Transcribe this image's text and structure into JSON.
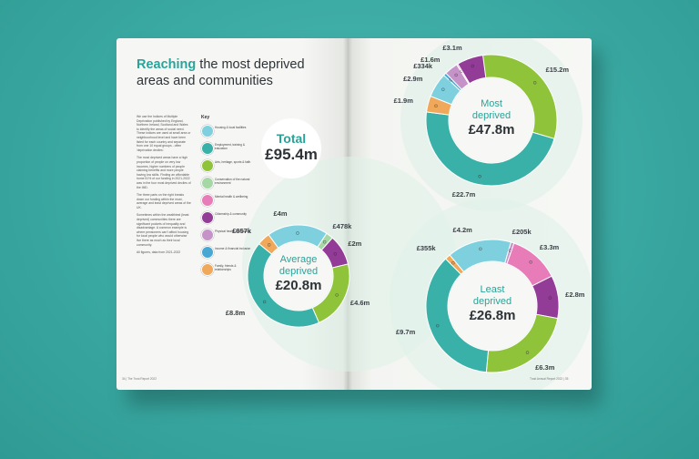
{
  "heading": {
    "highlight": "Reaching",
    "rest_line1": "the most deprived",
    "line2": "areas and communities"
  },
  "body_paragraphs": [
    "We use the Indices of Multiple Deprivation published by England, Northern Ireland, Scotland and Wales to identify the areas of social need. These indices are used at small area or neighbourhood level and have been listed for each country and separate from one 10 equal groups - often 'deprivation deciles'.",
    "The most deprived areas have a high proportion of people on very low incomes, higher numbers of people claiming benefits and more people having low skills. Finding an affordable home 51% of our funding in 2021-2022 was in the four most deprived deciles of the IMD.",
    "The three parts on the right breaks down our funding within the most, average and least deprived areas of the UK.",
    "Sometimes within the wealthiest (least deprived) communities there are significant pockets of inequality and disadvantage. A common example is where pensioners can't afford housing for local people who would otherwise live there as much as their local community.",
    "All figures, data from 2021-2022"
  ],
  "key_title": "Key",
  "key": [
    {
      "label": "Housing & local facilities",
      "color": "#7fd0df"
    },
    {
      "label": "Employment, training & education",
      "color": "#39b1a9"
    },
    {
      "label": "Arts, heritage, sports & faith",
      "color": "#8fc33a"
    },
    {
      "label": "Conservation of the natural environment",
      "color": "#a6d8a5"
    },
    {
      "label": "Mental health & wellbeing",
      "color": "#e87cb8"
    },
    {
      "label": "Citizenship & community",
      "color": "#923b97"
    },
    {
      "label": "Physical health & wellbeing",
      "color": "#c593c8"
    },
    {
      "label": "Income & financial inclusion",
      "color": "#48a8d4"
    },
    {
      "label": "Family, friends & relationships",
      "color": "#f0a85a"
    }
  ],
  "footer_left": "34 | The Trust Report 2022",
  "footer_right": "Trust Annual Report 2022 | 35",
  "total": {
    "label": "Total",
    "value": "£95.4m"
  },
  "chart_data": [
    {
      "type": "pie",
      "title": "Most deprived",
      "total": "£47.8m",
      "categories": [
        "Arts, heritage, sports & faith",
        "Employment, training & education",
        "Family, friends & relationships",
        "Housing & local facilities",
        "Income & financial inclusion",
        "Physical health & wellbeing",
        "Mental health & wellbeing",
        "Citizenship & community"
      ],
      "values": [
        15.2,
        22.7,
        1.9,
        2.9,
        0.334,
        1.6,
        0.1,
        3.1
      ],
      "labels": [
        "£15.2m",
        "£22.7m",
        "£1.9m",
        "£2.9m",
        "£334k",
        "£1.6m",
        "",
        "£3.1m"
      ],
      "colors": [
        "#8fc33a",
        "#39b1a9",
        "#f0a85a",
        "#7fd0df",
        "#48a8d4",
        "#c593c8",
        "#e87cb8",
        "#923b97"
      ]
    },
    {
      "type": "pie",
      "title": "Average deprived",
      "total": "£20.8m",
      "categories": [
        "Housing & local facilities",
        "Conservation of the natural environment",
        "Citizenship & community",
        "Arts, heritage, sports & faith",
        "Employment, training & education",
        "Family, friends & relationships"
      ],
      "values": [
        4,
        0.478,
        2,
        4.6,
        8.8,
        0.857
      ],
      "labels": [
        "£4m",
        "£478k",
        "£2m",
        "£4.6m",
        "£8.8m",
        "£857k"
      ],
      "colors": [
        "#7fd0df",
        "#a6d8a5",
        "#923b97",
        "#8fc33a",
        "#39b1a9",
        "#f0a85a"
      ]
    },
    {
      "type": "pie",
      "title": "Least deprived",
      "total": "£26.8m",
      "categories": [
        "Housing & local facilities",
        "Physical health & wellbeing",
        "Mental health & wellbeing",
        "Citizenship & community",
        "Arts, heritage, sports & faith",
        "Employment, training & education",
        "Family, friends & relationships"
      ],
      "values": [
        4.2,
        0.205,
        3.3,
        2.8,
        6.3,
        9.7,
        0.355
      ],
      "labels": [
        "£4.2m",
        "£205k",
        "£3.3m",
        "£2.8m",
        "£6.3m",
        "£9.7m",
        "£355k"
      ],
      "colors": [
        "#7fd0df",
        "#c593c8",
        "#e87cb8",
        "#923b97",
        "#8fc33a",
        "#39b1a9",
        "#f0a85a"
      ]
    }
  ]
}
